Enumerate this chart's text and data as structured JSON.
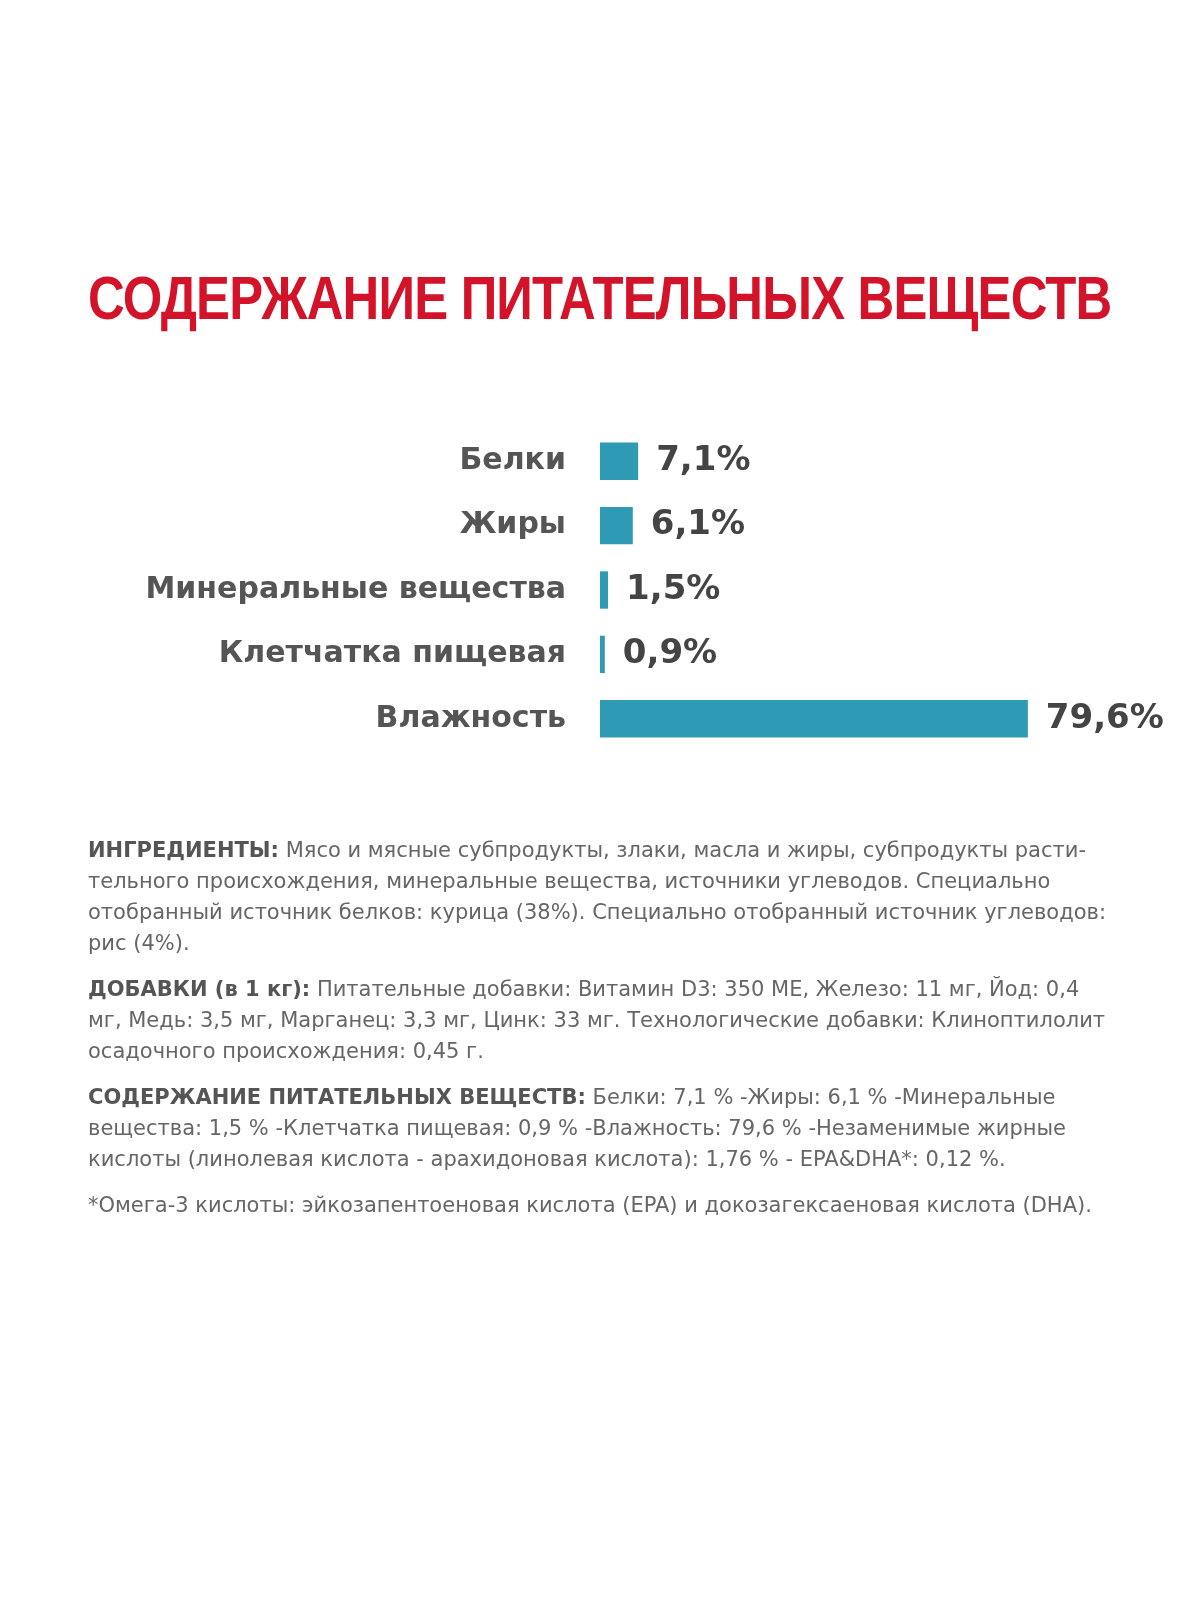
{
  "chart_data": {
    "type": "bar",
    "orientation": "horizontal",
    "title": "СОДЕРЖАНИЕ ПИТАТЕЛЬНЫХ ВЕЩЕСТВ",
    "categories": [
      "Белки",
      "Жиры",
      "Минеральные вещества",
      "Клетчатка пищевая",
      "Влажность"
    ],
    "values": [
      7.1,
      6.1,
      1.5,
      0.9,
      79.6
    ],
    "color": "#2e9ab4",
    "value_labels": [
      "7,1%",
      "6,1%",
      "1,5%",
      "0,9%",
      "79,6%"
    ],
    "grid": false,
    "legend": false,
    "tick_labels": "y",
    "annotations": [
      "ИНГРЕДИЕНТЫ: Мясо и мясные субпродукты, злаки, масла и жиры, субпродукты расти-тельного происхождения, минеральные вещества, источники углеводов. Специально отобранный источник белков: курица (38%). Специально отобранный источник углеводов: рис (4%).",
      "ДОБАВКИ (в 1 кг): Питательные добавки: Витамин D3: 350 МЕ, Железо: 11 мг, Йод: 0,4 мг, Медь: 3,5 мг, Марганец: 3,3 мг, Цинк: 33 мг. Технологические добавки: Клиноптилолит осадочного происхождения: 0,45 г.",
      "СОДЕРЖАНИЕ ПИТАТЕЛЬНЫХ ВЕЩЕСТВ: Белки: 7,1 % -Жиры: 6,1 % -Минеральные вещества: 1,5 % -Клетчатка пищевая: 0,9 % -Влажность: 79,6 % -Незаменимые жирные кислоты (линолевая кислота - арахидоновая кислота): 1,76 % - EPA&DHA*: 0,12 %.",
      "*Омега-3 кислоты: эйкозапентоеновая кислота (EPA) и докозагексаеновая кислота (DHA)."
    ]
  }
}
